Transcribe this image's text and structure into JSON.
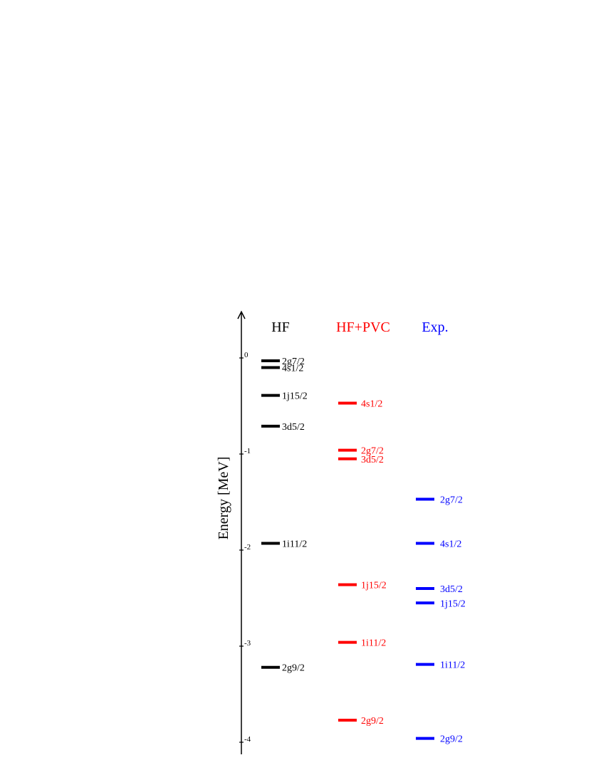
{
  "chart_data": {
    "type": "level-diagram",
    "ylabel": "Energy [MeV]",
    "yticks": [
      0,
      -1,
      -2,
      -3,
      -4
    ],
    "ytick_labels": [
      "0",
      "-1",
      "-2",
      "-3",
      "-4"
    ],
    "ylim": [
      -4.1,
      0.45
    ],
    "columns": [
      {
        "name": "HF",
        "color": "#000000",
        "levels": [
          {
            "label": "2g7/2",
            "energy": -0.03
          },
          {
            "label": "4s1/2",
            "energy": -0.1
          },
          {
            "label": "1j15/2",
            "energy": -0.39
          },
          {
            "label": "3d5/2",
            "energy": -0.71
          },
          {
            "label": "1i11/2",
            "energy": -1.93
          },
          {
            "label": "2g9/2",
            "energy": -3.22
          }
        ]
      },
      {
        "name": "HF+PVC",
        "color": "#ff0000",
        "levels": [
          {
            "label": "4s1/2",
            "energy": -0.47
          },
          {
            "label": "2g7/2",
            "energy": -0.96
          },
          {
            "label": "3d5/2",
            "energy": -1.05
          },
          {
            "label": "1j15/2",
            "energy": -2.36
          },
          {
            "label": "1i11/2",
            "energy": -2.96
          },
          {
            "label": "2g9/2",
            "energy": -3.77
          }
        ]
      },
      {
        "name": "Exp.",
        "color": "#0000ff",
        "levels": [
          {
            "label": "2g7/2",
            "energy": -1.47
          },
          {
            "label": "4s1/2",
            "energy": -1.93
          },
          {
            "label": "3d5/2",
            "energy": -2.4
          },
          {
            "label": "1j15/2",
            "energy": -2.55
          },
          {
            "label": "1i11/2",
            "energy": -3.19
          },
          {
            "label": "2g9/2",
            "energy": -3.96
          }
        ]
      }
    ]
  }
}
